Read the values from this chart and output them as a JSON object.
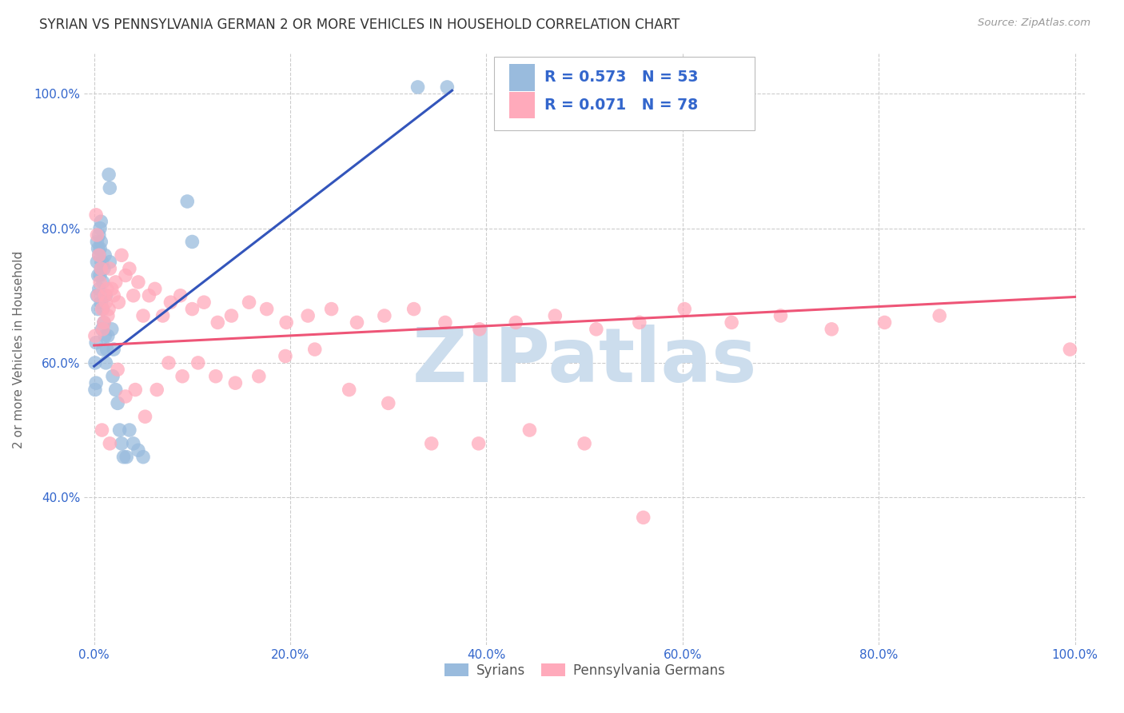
{
  "title": "SYRIAN VS PENNSYLVANIA GERMAN 2 OR MORE VEHICLES IN HOUSEHOLD CORRELATION CHART",
  "source": "Source: ZipAtlas.com",
  "ylabel": "2 or more Vehicles in Household",
  "legend_labels": [
    "Syrians",
    "Pennsylvania Germans"
  ],
  "syrians_R": "R = 0.573",
  "syrians_N": "N = 53",
  "pg_R": "R = 0.071",
  "pg_N": "N = 78",
  "blue_color": "#99BBDD",
  "pink_color": "#FFAABB",
  "blue_line_color": "#3355BB",
  "pink_line_color": "#EE5577",
  "blue_text_color": "#3366CC",
  "watermark_color": "#CCDDED",
  "bg_color": "#FFFFFF",
  "grid_color": "#CCCCCC",
  "xlim": [
    -0.01,
    1.01
  ],
  "ylim": [
    0.18,
    1.06
  ],
  "xtick_vals": [
    0.0,
    0.2,
    0.4,
    0.6,
    0.8,
    1.0
  ],
  "xtick_labels": [
    "0.0%",
    "20.0%",
    "40.0%",
    "60.0%",
    "80.0%",
    "100.0%"
  ],
  "ytick_vals": [
    0.4,
    0.6,
    0.8,
    1.0
  ],
  "ytick_labels": [
    "40.0%",
    "60.0%",
    "80.0%",
    "100.0%"
  ],
  "blue_line_x": [
    0.0,
    0.365
  ],
  "blue_line_y": [
    0.595,
    1.005
  ],
  "pink_line_x": [
    0.0,
    1.0
  ],
  "pink_line_y": [
    0.626,
    0.698
  ],
  "syrians_x": [
    0.001,
    0.001,
    0.002,
    0.002,
    0.003,
    0.003,
    0.003,
    0.004,
    0.004,
    0.004,
    0.005,
    0.005,
    0.005,
    0.006,
    0.006,
    0.006,
    0.007,
    0.007,
    0.007,
    0.007,
    0.008,
    0.008,
    0.009,
    0.009,
    0.009,
    0.01,
    0.01,
    0.011,
    0.011,
    0.012,
    0.012,
    0.013,
    0.014,
    0.015,
    0.016,
    0.016,
    0.018,
    0.019,
    0.02,
    0.022,
    0.024,
    0.026,
    0.028,
    0.03,
    0.033,
    0.036,
    0.04,
    0.045,
    0.05,
    0.095,
    0.1,
    0.33,
    0.36
  ],
  "syrians_y": [
    0.6,
    0.56,
    0.63,
    0.57,
    0.78,
    0.75,
    0.7,
    0.77,
    0.73,
    0.68,
    0.79,
    0.76,
    0.71,
    0.8,
    0.77,
    0.73,
    0.81,
    0.78,
    0.74,
    0.69,
    0.75,
    0.65,
    0.72,
    0.68,
    0.62,
    0.74,
    0.66,
    0.76,
    0.64,
    0.7,
    0.6,
    0.62,
    0.64,
    0.88,
    0.86,
    0.75,
    0.65,
    0.58,
    0.62,
    0.56,
    0.54,
    0.5,
    0.48,
    0.46,
    0.46,
    0.5,
    0.48,
    0.47,
    0.46,
    0.84,
    0.78,
    1.01,
    1.01
  ],
  "pg_x": [
    0.001,
    0.002,
    0.003,
    0.004,
    0.005,
    0.006,
    0.007,
    0.008,
    0.009,
    0.01,
    0.011,
    0.012,
    0.013,
    0.014,
    0.015,
    0.016,
    0.018,
    0.02,
    0.022,
    0.025,
    0.028,
    0.032,
    0.036,
    0.04,
    0.045,
    0.05,
    0.056,
    0.062,
    0.07,
    0.078,
    0.088,
    0.1,
    0.112,
    0.126,
    0.14,
    0.158,
    0.176,
    0.196,
    0.218,
    0.242,
    0.268,
    0.296,
    0.326,
    0.358,
    0.393,
    0.43,
    0.47,
    0.512,
    0.556,
    0.602,
    0.65,
    0.7,
    0.752,
    0.806,
    0.862,
    0.008,
    0.016,
    0.024,
    0.032,
    0.042,
    0.052,
    0.064,
    0.076,
    0.09,
    0.106,
    0.124,
    0.144,
    0.168,
    0.195,
    0.225,
    0.26,
    0.3,
    0.344,
    0.392,
    0.444,
    0.5,
    0.56,
    0.995
  ],
  "pg_y": [
    0.64,
    0.82,
    0.79,
    0.7,
    0.76,
    0.72,
    0.74,
    0.68,
    0.65,
    0.66,
    0.7,
    0.69,
    0.71,
    0.67,
    0.68,
    0.74,
    0.71,
    0.7,
    0.72,
    0.69,
    0.76,
    0.73,
    0.74,
    0.7,
    0.72,
    0.67,
    0.7,
    0.71,
    0.67,
    0.69,
    0.7,
    0.68,
    0.69,
    0.66,
    0.67,
    0.69,
    0.68,
    0.66,
    0.67,
    0.68,
    0.66,
    0.67,
    0.68,
    0.66,
    0.65,
    0.66,
    0.67,
    0.65,
    0.66,
    0.68,
    0.66,
    0.67,
    0.65,
    0.66,
    0.67,
    0.5,
    0.48,
    0.59,
    0.55,
    0.56,
    0.52,
    0.56,
    0.6,
    0.58,
    0.6,
    0.58,
    0.57,
    0.58,
    0.61,
    0.62,
    0.56,
    0.54,
    0.48,
    0.48,
    0.5,
    0.48,
    0.37,
    0.62
  ]
}
